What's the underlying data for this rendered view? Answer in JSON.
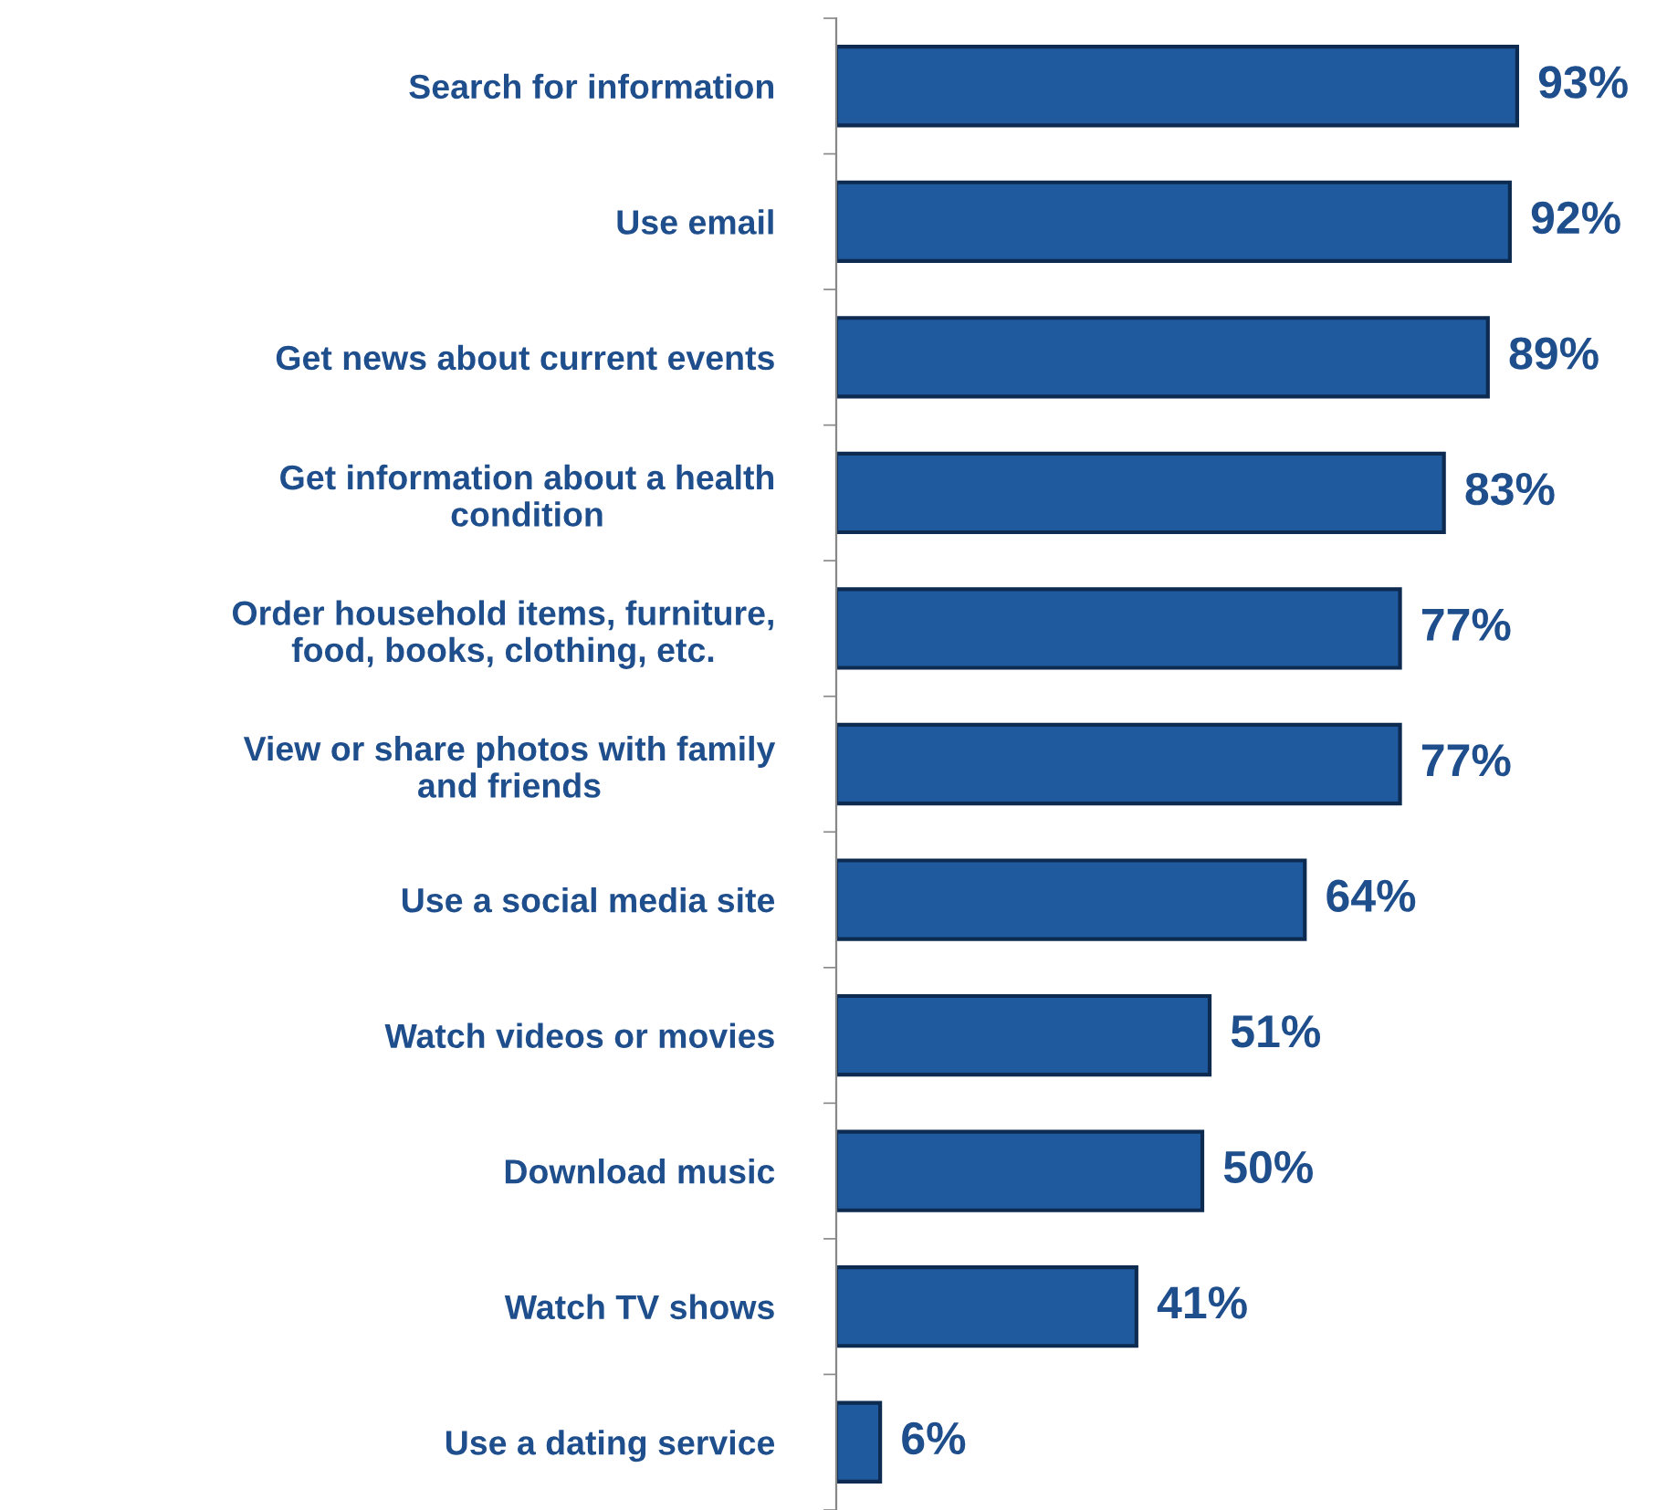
{
  "chart_data": {
    "type": "bar",
    "orientation": "horizontal",
    "categories": [
      "Search for information",
      "Use email",
      "Get news about current events",
      "Get information about a health\ncondition",
      "Order household items, furniture,\nfood, books, clothing, etc.",
      "View or share photos with family\nand friends",
      "Use a social media site",
      "Watch videos or movies",
      "Download music",
      "Watch TV shows",
      "Use a dating service"
    ],
    "values": [
      93,
      92,
      89,
      83,
      77,
      77,
      64,
      51,
      50,
      41,
      6
    ],
    "value_labels": [
      "93%",
      "92%",
      "89%",
      "83%",
      "77%",
      "77%",
      "64%",
      "51%",
      "50%",
      "41%",
      "6%"
    ],
    "color": "#1f5a9e",
    "grid": false,
    "legend": false,
    "tick_labels": "y"
  }
}
